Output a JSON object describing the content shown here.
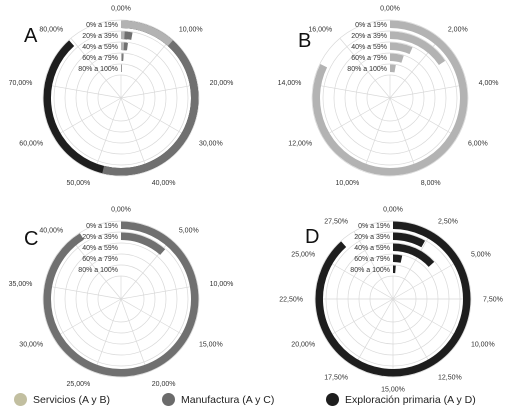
{
  "chart_data": [
    {
      "type": "radial-bar",
      "panel": "A",
      "categories": [
        "0% a 19%",
        "20% a 39%",
        "40% a 59%",
        "60% a 79%",
        "80% a 100%"
      ],
      "ticks": [
        "0,00%",
        "10,00%",
        "20,00%",
        "30,00%",
        "40,00%",
        "50,00%",
        "60,00%",
        "70,00%",
        "80,00%"
      ],
      "max": 90,
      "series": [
        {
          "values": [
            79.5,
            1.5,
            1.5,
            0.8,
            0.4
          ],
          "color": "#1e1e1e"
        },
        {
          "values": [
            48.5,
            2.5,
            1.8,
            0.8,
            0.4
          ],
          "color": "#707070"
        },
        {
          "values": [
            10.5,
            0.8,
            0.8,
            0.4,
            0.3
          ],
          "color": "#b3b3b3"
        }
      ]
    },
    {
      "type": "radial-bar",
      "panel": "B",
      "categories": [
        "0% a 19%",
        "20% a 39%",
        "40% a 59%",
        "60% a 79%",
        "80% a 100%"
      ],
      "ticks": [
        "0,00%",
        "2,00%",
        "4,00%",
        "6,00%",
        "8,00%",
        "10,00%",
        "12,00%",
        "14,00%",
        "16,00%"
      ],
      "max": 18,
      "series": [
        {
          "values": [
            14.8,
            2.8,
            1.2,
            0.9,
            0.5
          ],
          "color": "#b3b3b3"
        }
      ]
    },
    {
      "type": "radial-bar",
      "panel": "C",
      "categories": [
        "0% a 19%",
        "20% a 39%",
        "40% a 59%",
        "60% a 79%",
        "80% a 100%"
      ],
      "ticks": [
        "0,00%",
        "5,00%",
        "10,00%",
        "15,00%",
        "20,00%",
        "25,00%",
        "30,00%",
        "35,00%",
        "40,00%"
      ],
      "max": 45,
      "series": [
        {
          "values": [
            41,
            5.2,
            0,
            0,
            0
          ],
          "color": "#707070"
        }
      ]
    },
    {
      "type": "radial-bar",
      "panel": "D",
      "categories": [
        "0% a 19%",
        "20% a 39%",
        "40% a 59%",
        "60% a 79%",
        "80% a 100%"
      ],
      "ticks": [
        "0,00%",
        "2,50%",
        "5,00%",
        "7,50%",
        "10,00%",
        "12,50%",
        "15,00%",
        "17,50%",
        "20,00%",
        "22,50%",
        "25,00%",
        "27,50%"
      ],
      "max": 30,
      "series": [
        {
          "values": [
            26.5,
            2.4,
            4.0,
            1.0,
            0.4
          ],
          "color": "#1e1e1e"
        }
      ]
    }
  ],
  "legend": [
    {
      "label": "Servicios (A y B)",
      "color": "#c2bfa0"
    },
    {
      "label": "Manufactura (A y C)",
      "color": "#6b6b6b"
    },
    {
      "label": "Exploración primaria (A y D)",
      "color": "#1e1e1e"
    }
  ]
}
